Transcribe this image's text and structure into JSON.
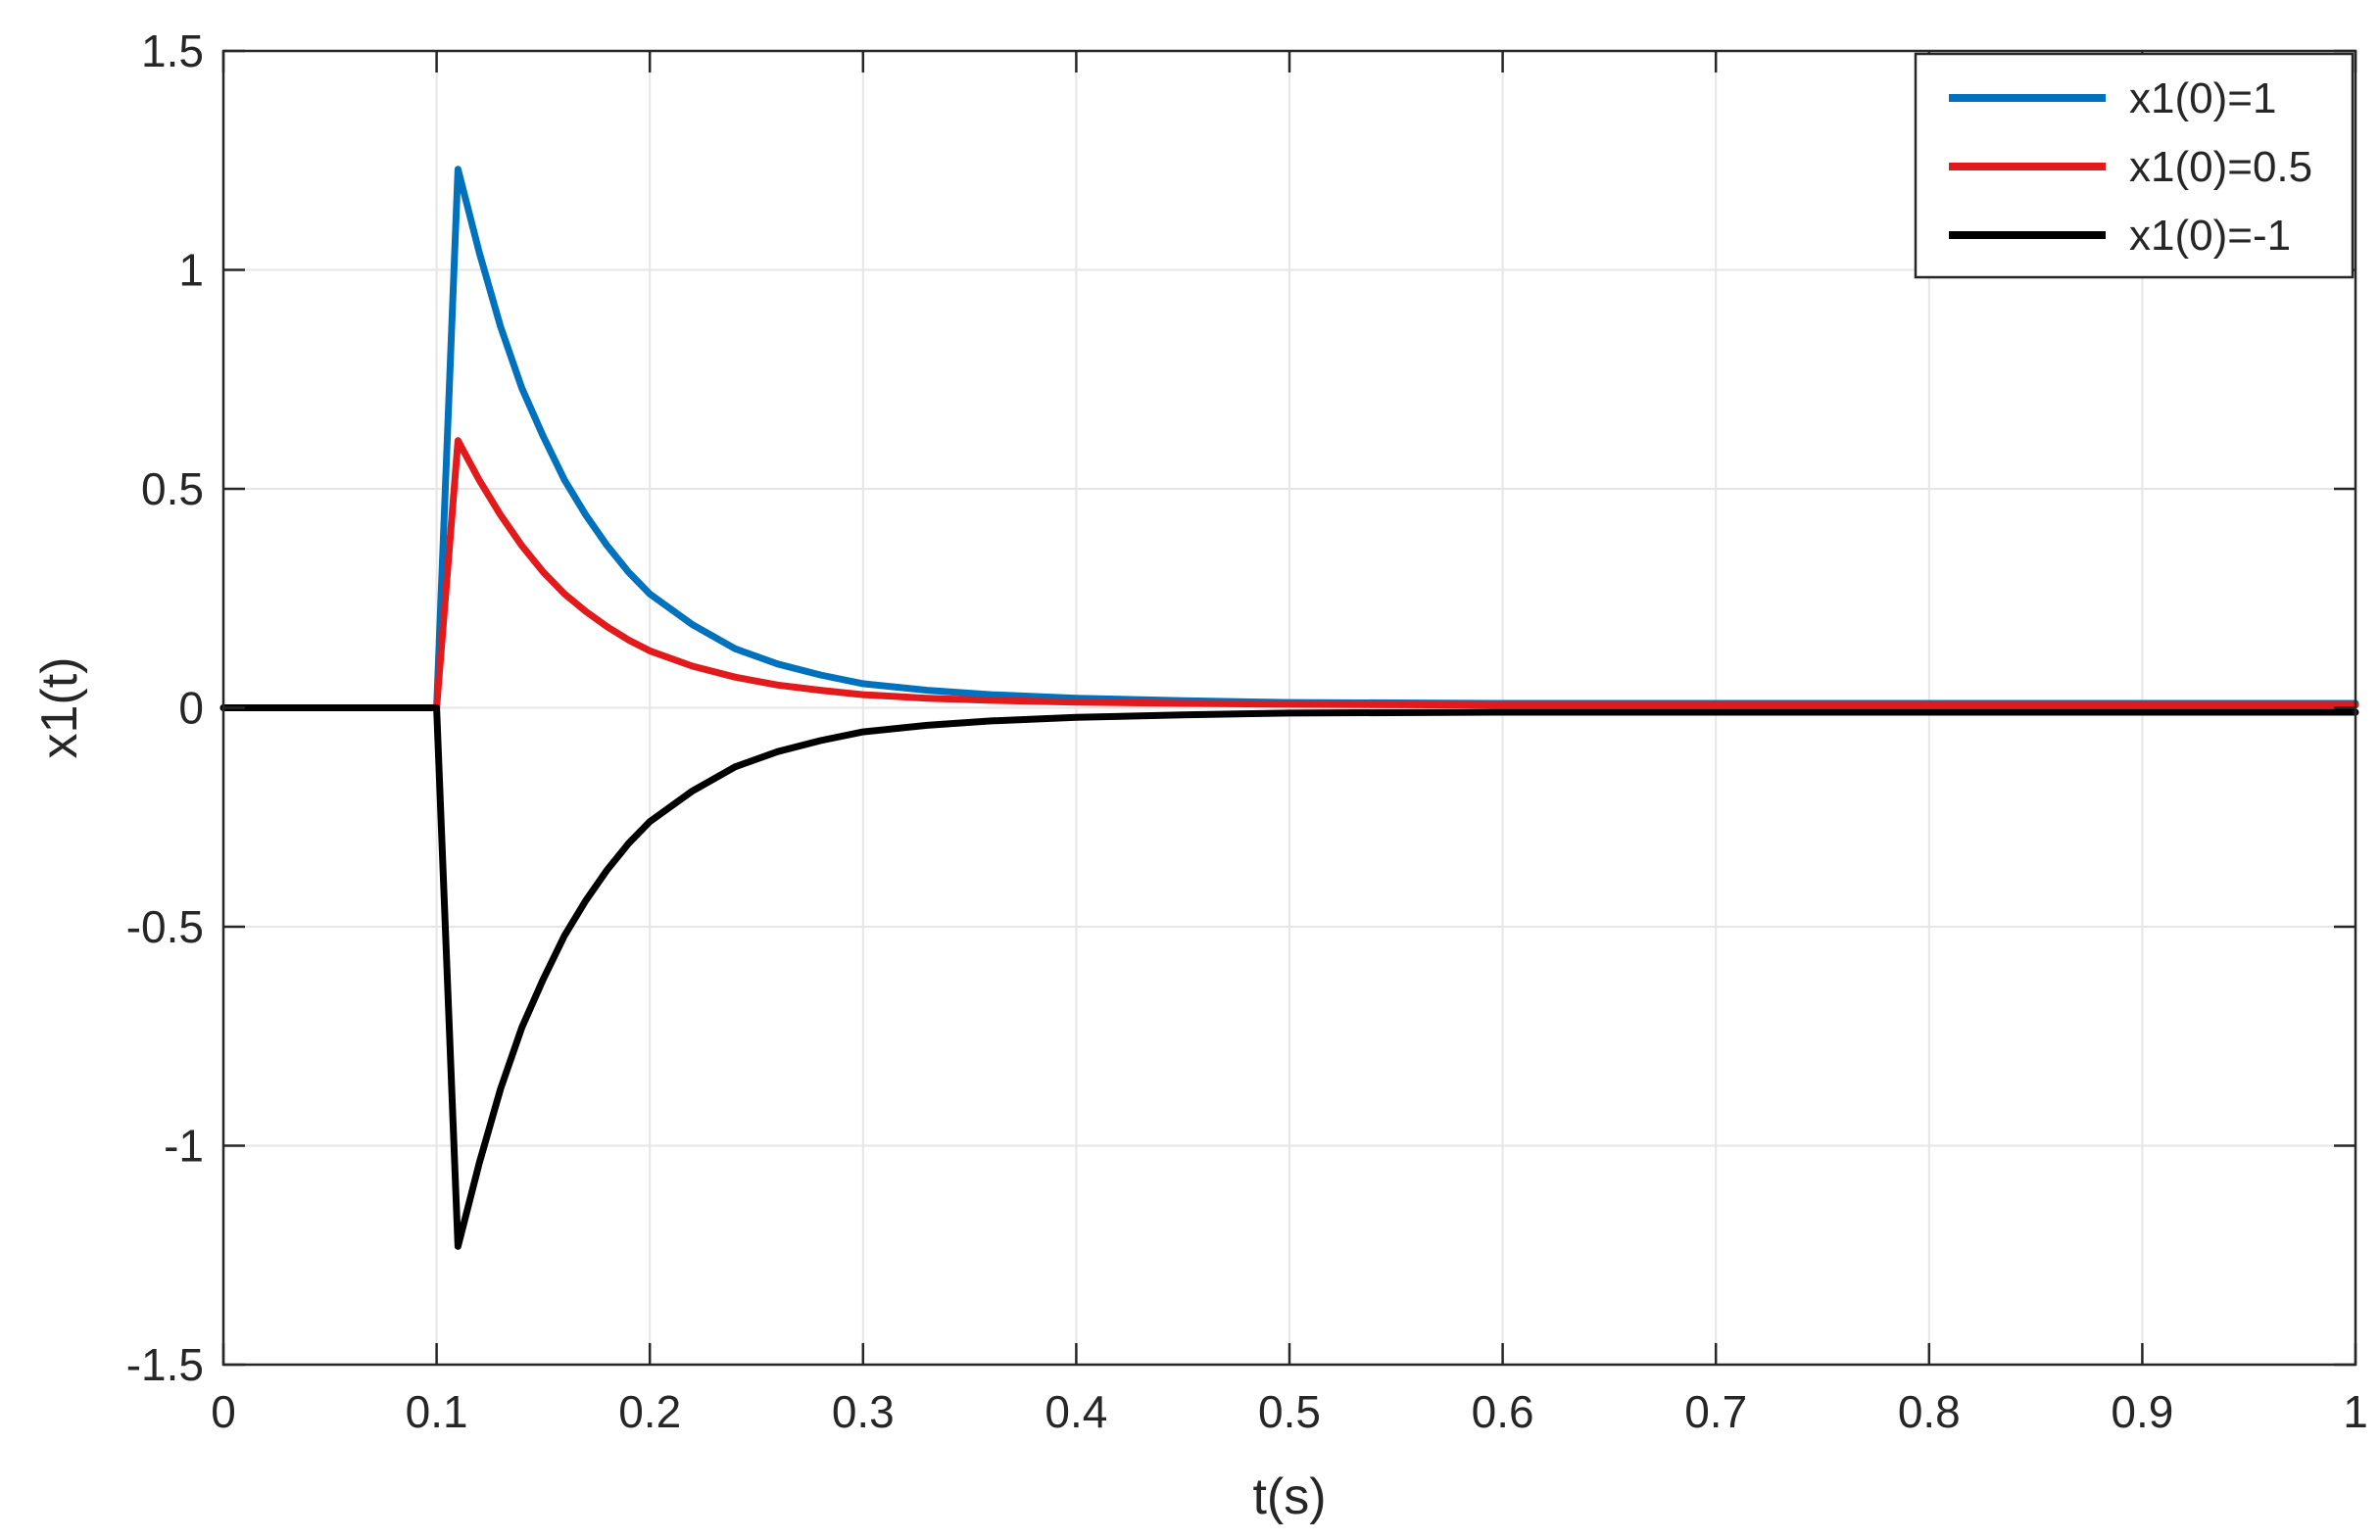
{
  "chart_data": {
    "type": "line",
    "title": "",
    "xlabel": "t(s)",
    "ylabel": "x1(t)",
    "xlim": [
      0,
      1
    ],
    "ylim": [
      -1.5,
      1.5
    ],
    "x_ticks": [
      0,
      0.1,
      0.2,
      0.3,
      0.4,
      0.5,
      0.6,
      0.7,
      0.8,
      0.9,
      1
    ],
    "x_tick_labels": [
      "0",
      "0.1",
      "0.2",
      "0.3",
      "0.4",
      "0.5",
      "0.6",
      "0.7",
      "0.8",
      "0.9",
      "1"
    ],
    "y_ticks": [
      1.5,
      1,
      0.5,
      0,
      -0.5,
      -1,
      -1.5
    ],
    "y_tick_labels": [
      "1.5",
      "1",
      "0.5",
      "0",
      "-0.5",
      "-1",
      "-1.5"
    ],
    "grid": true,
    "legend_position": "top-right",
    "series": [
      {
        "name": "x1(0)=1",
        "color": "#0072bd",
        "x": [
          0,
          0.1,
          0.11,
          0.12,
          0.13,
          0.14,
          0.15,
          0.16,
          0.17,
          0.18,
          0.19,
          0.2,
          0.22,
          0.24,
          0.26,
          0.28,
          0.3,
          0.33,
          0.36,
          0.4,
          0.45,
          0.5,
          0.6,
          0.7,
          0.8,
          0.9,
          1
        ],
        "y": [
          0,
          0,
          1.23,
          1.04,
          0.87,
          0.73,
          0.62,
          0.52,
          0.44,
          0.37,
          0.31,
          0.26,
          0.19,
          0.135,
          0.1,
          0.075,
          0.055,
          0.04,
          0.03,
          0.022,
          0.016,
          0.012,
          0.01,
          0.01,
          0.01,
          0.01,
          0.01
        ]
      },
      {
        "name": "x1(0)=0.5",
        "color": "#e31a1c",
        "x": [
          0,
          0.1,
          0.11,
          0.12,
          0.13,
          0.14,
          0.15,
          0.16,
          0.17,
          0.18,
          0.19,
          0.2,
          0.22,
          0.24,
          0.26,
          0.28,
          0.3,
          0.33,
          0.36,
          0.4,
          0.45,
          0.5,
          0.6,
          0.7,
          0.8,
          0.9,
          1
        ],
        "y": [
          0,
          0,
          0.61,
          0.52,
          0.44,
          0.37,
          0.31,
          0.26,
          0.22,
          0.185,
          0.155,
          0.13,
          0.095,
          0.07,
          0.052,
          0.04,
          0.03,
          0.022,
          0.017,
          0.013,
          0.01,
          0.008,
          0.006,
          0.006,
          0.006,
          0.006,
          0.006
        ]
      },
      {
        "name": "x1(0)=-1",
        "color": "#000000",
        "x": [
          0,
          0.1,
          0.11,
          0.12,
          0.13,
          0.14,
          0.15,
          0.16,
          0.17,
          0.18,
          0.19,
          0.2,
          0.22,
          0.24,
          0.26,
          0.28,
          0.3,
          0.33,
          0.36,
          0.4,
          0.45,
          0.5,
          0.6,
          0.7,
          0.8,
          0.9,
          1
        ],
        "y": [
          0,
          0,
          -1.23,
          -1.04,
          -0.87,
          -0.73,
          -0.62,
          -0.52,
          -0.44,
          -0.37,
          -0.31,
          -0.26,
          -0.19,
          -0.135,
          -0.1,
          -0.075,
          -0.055,
          -0.04,
          -0.03,
          -0.022,
          -0.016,
          -0.012,
          -0.01,
          -0.01,
          -0.01,
          -0.01,
          -0.01
        ]
      }
    ]
  }
}
